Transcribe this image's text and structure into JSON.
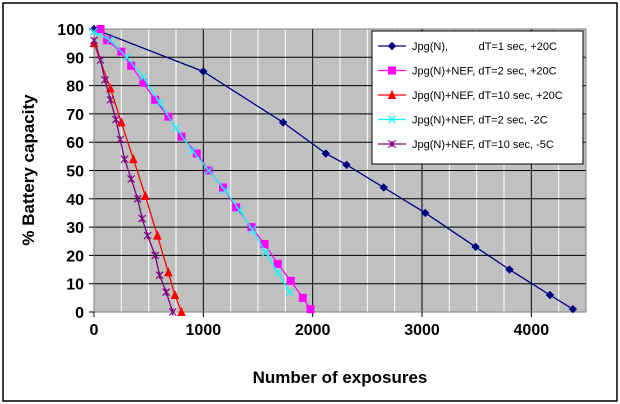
{
  "chart_data": {
    "type": "line",
    "xlabel": "Number of exposures",
    "ylabel": "% Battery capacity",
    "xlim": [
      0,
      4500
    ],
    "ylim": [
      0,
      100
    ],
    "x_ticks": [
      0,
      1000,
      2000,
      3000,
      4000
    ],
    "y_ticks": [
      0,
      10,
      20,
      30,
      40,
      50,
      60,
      70,
      80,
      90,
      100
    ],
    "x_tick_labels": [
      "0",
      "1000",
      "2000",
      "3000",
      "4000"
    ],
    "y_tick_labels": [
      "0",
      "10",
      "20",
      "30",
      "40",
      "50",
      "60",
      "70",
      "80",
      "90",
      "100"
    ],
    "grid": true,
    "plot_background": "#c0c0c0",
    "legend_position": "top-right",
    "series": [
      {
        "name": "Jpg(N),          dT=1 sec, +20C",
        "color": "#000080",
        "marker": "diamond",
        "points": [
          [
            0,
            100
          ],
          [
            1000,
            85
          ],
          [
            1730,
            67
          ],
          [
            2120,
            56
          ],
          [
            2310,
            52
          ],
          [
            2650,
            44
          ],
          [
            3030,
            35
          ],
          [
            3490,
            23
          ],
          [
            3800,
            15
          ],
          [
            4170,
            6
          ],
          [
            4380,
            1
          ]
        ]
      },
      {
        "name": "Jpg(N)+NEF, dT=2 sec, +20C",
        "color": "#ff00ff",
        "marker": "square",
        "points": [
          [
            60,
            100
          ],
          [
            120,
            96
          ],
          [
            250,
            92
          ],
          [
            340,
            87
          ],
          [
            450,
            81
          ],
          [
            560,
            75
          ],
          [
            680,
            69
          ],
          [
            800,
            62
          ],
          [
            940,
            56
          ],
          [
            1050,
            50
          ],
          [
            1180,
            44
          ],
          [
            1300,
            37
          ],
          [
            1440,
            30
          ],
          [
            1560,
            24
          ],
          [
            1680,
            17
          ],
          [
            1800,
            11
          ],
          [
            1910,
            5
          ],
          [
            1980,
            1
          ]
        ]
      },
      {
        "name": "Jpg(N)+NEF, dT=10 sec, +20C",
        "color": "#ff0000",
        "marker": "triangle",
        "points": [
          [
            0,
            95
          ],
          [
            150,
            79
          ],
          [
            250,
            67
          ],
          [
            360,
            54
          ],
          [
            470,
            41
          ],
          [
            580,
            27
          ],
          [
            680,
            14
          ],
          [
            740,
            6
          ],
          [
            800,
            0
          ]
        ]
      },
      {
        "name": "Jpg(N)+NEF, dT=2 sec, -2C",
        "color": "#00ffff",
        "marker": "x",
        "points": [
          [
            0,
            99
          ],
          [
            150,
            96
          ],
          [
            300,
            90
          ],
          [
            450,
            83
          ],
          [
            600,
            74
          ],
          [
            750,
            65
          ],
          [
            900,
            57
          ],
          [
            1050,
            50
          ],
          [
            1200,
            43
          ],
          [
            1330,
            36
          ],
          [
            1450,
            29
          ],
          [
            1570,
            21
          ],
          [
            1680,
            14
          ],
          [
            1790,
            7
          ]
        ]
      },
      {
        "name": "Jpg(N)+NEF, dT=10 sec, -5C",
        "color": "#800080",
        "marker": "star",
        "points": [
          [
            0,
            96
          ],
          [
            60,
            89
          ],
          [
            100,
            82
          ],
          [
            150,
            75
          ],
          [
            200,
            68
          ],
          [
            240,
            61
          ],
          [
            280,
            54
          ],
          [
            340,
            47
          ],
          [
            400,
            40
          ],
          [
            440,
            33
          ],
          [
            490,
            27
          ],
          [
            560,
            20
          ],
          [
            600,
            13
          ],
          [
            660,
            7
          ],
          [
            720,
            0
          ]
        ]
      }
    ]
  }
}
